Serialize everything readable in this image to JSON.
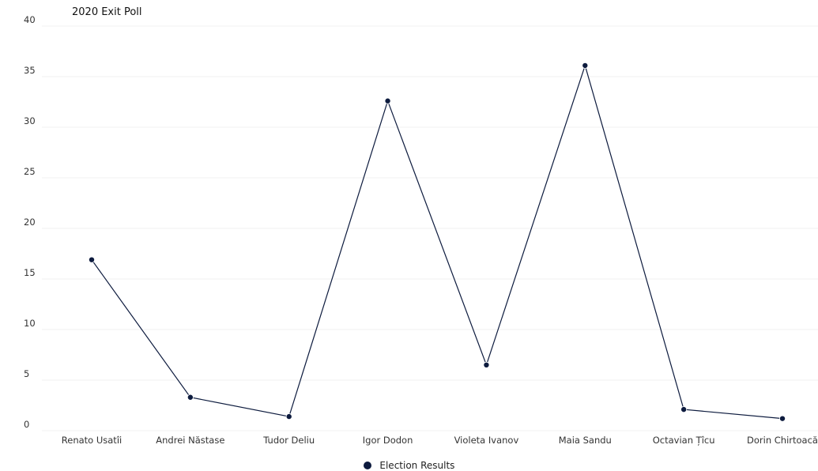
{
  "chart_data": {
    "type": "line",
    "title": "2020 Exit Poll",
    "xlabel": "",
    "ylabel": "",
    "categories": [
      "Renato Usatîi",
      "Andrei Năstase",
      "Tudor Deliu",
      "Igor Dodon",
      "Violeta Ivanov",
      "Maia Sandu",
      "Octavian Țîcu",
      "Dorin Chirtoacă"
    ],
    "series": [
      {
        "name": "Election Results",
        "color": "#0d1b3e",
        "values": [
          16.9,
          3.3,
          1.4,
          32.6,
          6.5,
          36.1,
          2.1,
          1.2
        ]
      }
    ],
    "ylim": [
      0,
      40
    ],
    "yticks": [
      0,
      5,
      10,
      15,
      20,
      25,
      30,
      35,
      40
    ],
    "grid": true,
    "legend_position": "bottom"
  }
}
